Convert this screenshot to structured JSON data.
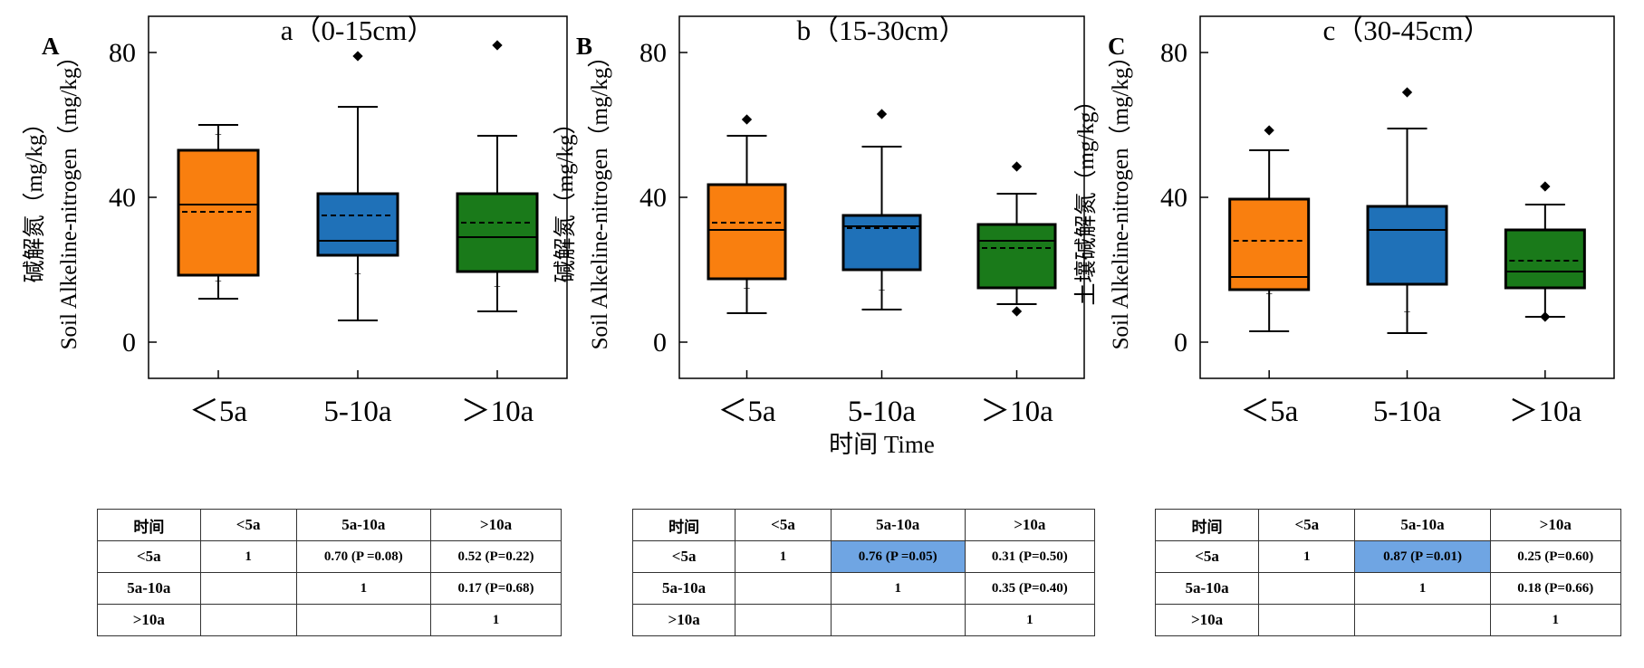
{
  "chart_data": [
    {
      "type": "box",
      "panel_letter": "A",
      "title": "a（0-15cm）",
      "ylabel_cn": "碱解氮（mg/kg）",
      "ylabel_en": "Soil Alkeline-nitrogen（mg/kg）",
      "xlabel": "",
      "ylim": [
        -10,
        90
      ],
      "yticks": [
        0,
        40,
        80
      ],
      "grid": false,
      "categories": [
        "＜5a",
        "5-10a",
        "＞10a"
      ],
      "boxes": [
        {
          "color": "#f97f0f",
          "q1": 18.5,
          "median": 38,
          "q3": 53,
          "mean": 36,
          "whisker_low": 12,
          "whisker_high": 60,
          "outliers": [],
          "minor_marks": [
            57.5,
            17
          ]
        },
        {
          "color": "#1f71b8",
          "q1": 24,
          "median": 28,
          "q3": 41,
          "mean": 35,
          "whisker_low": 6,
          "whisker_high": 65,
          "outliers": [
            79
          ],
          "minor_marks": [
            19
          ]
        },
        {
          "color": "#1a7a1a",
          "q1": 19.5,
          "median": 29,
          "q3": 41,
          "mean": 33,
          "whisker_low": 8.5,
          "whisker_high": 57,
          "outliers": [
            82
          ],
          "minor_marks": [
            15.5
          ]
        }
      ]
    },
    {
      "type": "box",
      "panel_letter": "B",
      "title": "b（15-30cm）",
      "ylabel_cn": "碱解氮（mg/kg）",
      "ylabel_en": "Soil Alkeline-nitrogen（mg/kg）",
      "xlabel": "时间 Time",
      "ylim": [
        -10,
        90
      ],
      "yticks": [
        0,
        40,
        80
      ],
      "grid": false,
      "categories": [
        "＜5a",
        "5-10a",
        "＞10a"
      ],
      "boxes": [
        {
          "color": "#f97f0f",
          "q1": 17.5,
          "median": 31,
          "q3": 43.5,
          "mean": 33,
          "whisker_low": 8,
          "whisker_high": 57,
          "outliers": [
            61.5
          ],
          "minor_marks": [
            15
          ]
        },
        {
          "color": "#1f71b8",
          "q1": 20,
          "median": 32,
          "q3": 35,
          "mean": 31.5,
          "whisker_low": 9,
          "whisker_high": 54,
          "outliers": [
            63
          ],
          "minor_marks": [
            14.5
          ]
        },
        {
          "color": "#1a7a1a",
          "q1": 15,
          "median": 28,
          "q3": 32.5,
          "mean": 26,
          "whisker_low": 10.5,
          "whisker_high": 41,
          "outliers": [
            48.5,
            8.5
          ],
          "minor_marks": []
        }
      ]
    },
    {
      "type": "box",
      "panel_letter": "C",
      "title": "c（30-45cm）",
      "ylabel_cn": "土壤碱解氮（mg/kg）",
      "ylabel_en": "Soil Alkeline-nitrogen（mg/kg）",
      "xlabel": "",
      "ylim": [
        -10,
        90
      ],
      "yticks": [
        0,
        40,
        80
      ],
      "grid": false,
      "categories": [
        "＜5a",
        "5-10a",
        "＞10a"
      ],
      "boxes": [
        {
          "color": "#f97f0f",
          "q1": 14.5,
          "median": 18,
          "q3": 39.5,
          "mean": 28,
          "whisker_low": 3,
          "whisker_high": 53,
          "outliers": [
            58.5
          ],
          "minor_marks": [
            13.5
          ]
        },
        {
          "color": "#1f71b8",
          "q1": 16,
          "median": 31,
          "q3": 37.5,
          "mean": 31,
          "whisker_low": 2.5,
          "whisker_high": 59,
          "outliers": [
            69
          ],
          "minor_marks": [
            8.5
          ]
        },
        {
          "color": "#1a7a1a",
          "q1": 15,
          "median": 19.5,
          "q3": 31,
          "mean": 22.5,
          "whisker_low": 7,
          "whisker_high": 38,
          "outliers": [
            43,
            7
          ],
          "minor_marks": []
        }
      ]
    }
  ],
  "tables": [
    {
      "highlight_color": "#6fa5e3",
      "rows": [
        {
          "cells": [
            "时间",
            "<5a",
            "5a-10a",
            ">10a"
          ],
          "highlight": []
        },
        {
          "cells": [
            "<5a",
            "1",
            "0.70 (P =0.08)",
            "0.52 (P=0.22)"
          ],
          "highlight": []
        },
        {
          "cells": [
            "5a-10a",
            "",
            "1",
            "0.17 (P=0.68)"
          ],
          "highlight": []
        },
        {
          "cells": [
            ">10a",
            "",
            "",
            "1"
          ],
          "highlight": []
        }
      ]
    },
    {
      "highlight_color": "#6fa5e3",
      "rows": [
        {
          "cells": [
            "时间",
            "<5a",
            "5a-10a",
            ">10a"
          ],
          "highlight": []
        },
        {
          "cells": [
            "<5a",
            "1",
            "0.76 (P =0.05)",
            "0.31 (P=0.50)"
          ],
          "highlight": [
            2
          ]
        },
        {
          "cells": [
            "5a-10a",
            "",
            "1",
            "0.35 (P=0.40)"
          ],
          "highlight": []
        },
        {
          "cells": [
            ">10a",
            "",
            "",
            "1"
          ],
          "highlight": []
        }
      ]
    },
    {
      "highlight_color": "#6fa5e3",
      "rows": [
        {
          "cells": [
            "时间",
            "<5a",
            "5a-10a",
            ">10a"
          ],
          "highlight": []
        },
        {
          "cells": [
            "<5a",
            "1",
            "0.87 (P =0.01)",
            "0.25 (P=0.60)"
          ],
          "highlight": [
            2
          ]
        },
        {
          "cells": [
            "5a-10a",
            "",
            "1",
            "0.18 (P=0.66)"
          ],
          "highlight": []
        },
        {
          "cells": [
            ">10a",
            "",
            "",
            "1"
          ],
          "highlight": []
        }
      ]
    }
  ]
}
